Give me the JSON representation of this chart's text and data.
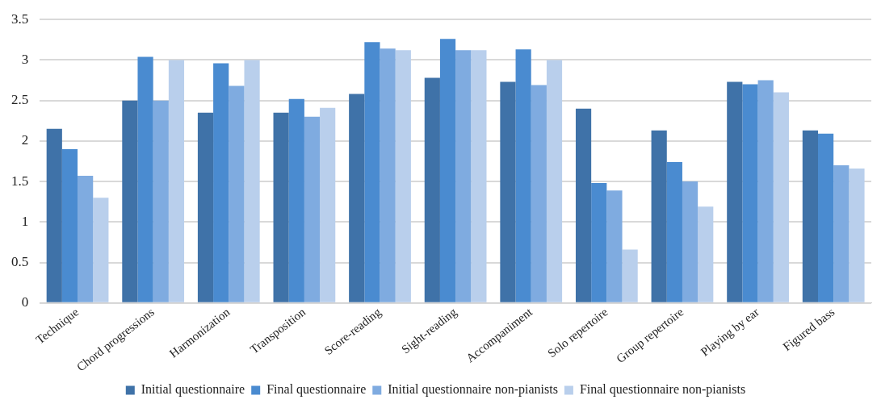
{
  "chart_data": {
    "type": "bar",
    "categories": [
      "Technique",
      "Chord progressions",
      "Harmonization",
      "Transposition",
      "Score-reading",
      "Sight-reading",
      "Accompaniment",
      "Solo repertoire",
      "Group repertoire",
      "Playing by ear",
      "Figured bass"
    ],
    "series": [
      {
        "name": "Initial questionnaire",
        "color": "#3f72a8",
        "values": [
          2.15,
          2.5,
          2.35,
          2.35,
          2.58,
          2.78,
          2.73,
          2.4,
          2.13,
          2.73,
          2.13
        ]
      },
      {
        "name": "Final questionnaire",
        "color": "#4a8bd0",
        "values": [
          1.9,
          3.04,
          2.96,
          2.52,
          3.22,
          3.26,
          3.13,
          1.48,
          1.74,
          2.7,
          2.09
        ]
      },
      {
        "name": "Initial questionnaire non-pianists",
        "color": "#7fabe0",
        "values": [
          1.57,
          2.5,
          2.68,
          2.3,
          3.14,
          3.12,
          2.69,
          1.39,
          1.5,
          2.75,
          1.7
        ]
      },
      {
        "name": "Final questionnaire non-pianists",
        "color": "#b9cfec",
        "values": [
          1.3,
          3.0,
          3.0,
          2.41,
          3.12,
          3.12,
          3.0,
          0.66,
          1.19,
          2.6,
          1.66
        ]
      }
    ],
    "ylim": [
      0,
      3.5
    ],
    "yticks": [
      0,
      0.5,
      1,
      1.5,
      2,
      2.5,
      3,
      3.5
    ],
    "grid": "y",
    "legend": "bottom"
  }
}
